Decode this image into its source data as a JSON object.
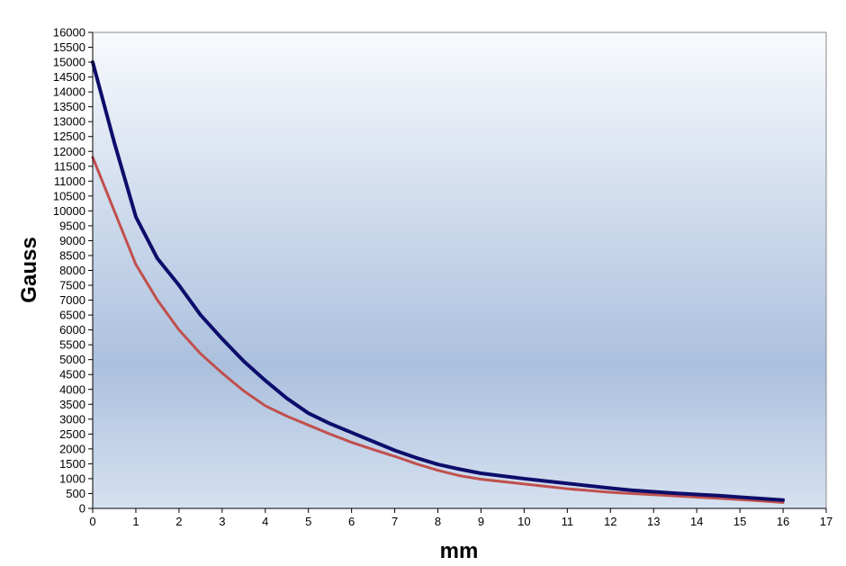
{
  "chart_data": {
    "type": "line",
    "title": "",
    "xlabel": "mm",
    "ylabel": "Gauss",
    "xlim": [
      0,
      17
    ],
    "ylim": [
      0,
      16000
    ],
    "x_ticks": [
      0,
      1,
      2,
      3,
      4,
      5,
      6,
      7,
      8,
      9,
      10,
      11,
      12,
      13,
      14,
      15,
      16,
      17
    ],
    "y_ticks": [
      0,
      500,
      1000,
      1500,
      2000,
      2500,
      3000,
      3500,
      4000,
      4500,
      5000,
      5500,
      6000,
      6500,
      7000,
      7500,
      8000,
      8500,
      9000,
      9500,
      10000,
      10500,
      11000,
      11500,
      12000,
      12500,
      13000,
      13500,
      14000,
      14500,
      15000,
      15500,
      16000
    ],
    "grid": false,
    "legend": "none",
    "series": [
      {
        "color": "#0d0d6b",
        "line_width": 4,
        "x": [
          0,
          0.5,
          1,
          1.5,
          2,
          2.5,
          3,
          3.5,
          4,
          4.5,
          5,
          5.5,
          6,
          6.5,
          7,
          7.5,
          8,
          8.5,
          9,
          9.5,
          10,
          10.5,
          11,
          11.5,
          12,
          12.5,
          13,
          13.5,
          14,
          14.5,
          15,
          15.5,
          16
        ],
        "y": [
          15000,
          12300,
          9800,
          8400,
          7500,
          6500,
          5700,
          4950,
          4300,
          3700,
          3200,
          2850,
          2550,
          2250,
          1950,
          1700,
          1480,
          1320,
          1180,
          1090,
          1000,
          920,
          840,
          760,
          680,
          610,
          560,
          510,
          470,
          430,
          380,
          330,
          280
        ]
      },
      {
        "color": "#c0504d",
        "line_width": 3,
        "x": [
          0,
          0.5,
          1,
          1.5,
          2,
          2.5,
          3,
          3.5,
          4,
          4.5,
          5,
          5.5,
          6,
          6.5,
          7,
          7.5,
          8,
          8.5,
          9,
          9.5,
          10,
          10.5,
          11,
          11.5,
          12,
          12.5,
          13,
          13.5,
          14,
          14.5,
          15,
          15.5,
          16
        ],
        "y": [
          11800,
          10000,
          8200,
          7000,
          6000,
          5200,
          4550,
          3950,
          3450,
          3100,
          2800,
          2500,
          2220,
          1980,
          1750,
          1500,
          1280,
          1100,
          980,
          900,
          820,
          740,
          660,
          600,
          540,
          500,
          460,
          420,
          380,
          340,
          300,
          250,
          200
        ]
      }
    ],
    "colors": {
      "plot_bg_top": "#f8fafd",
      "plot_bg_mid": "#abc0de",
      "plot_bg_bottom": "#d6e1f0"
    }
  }
}
